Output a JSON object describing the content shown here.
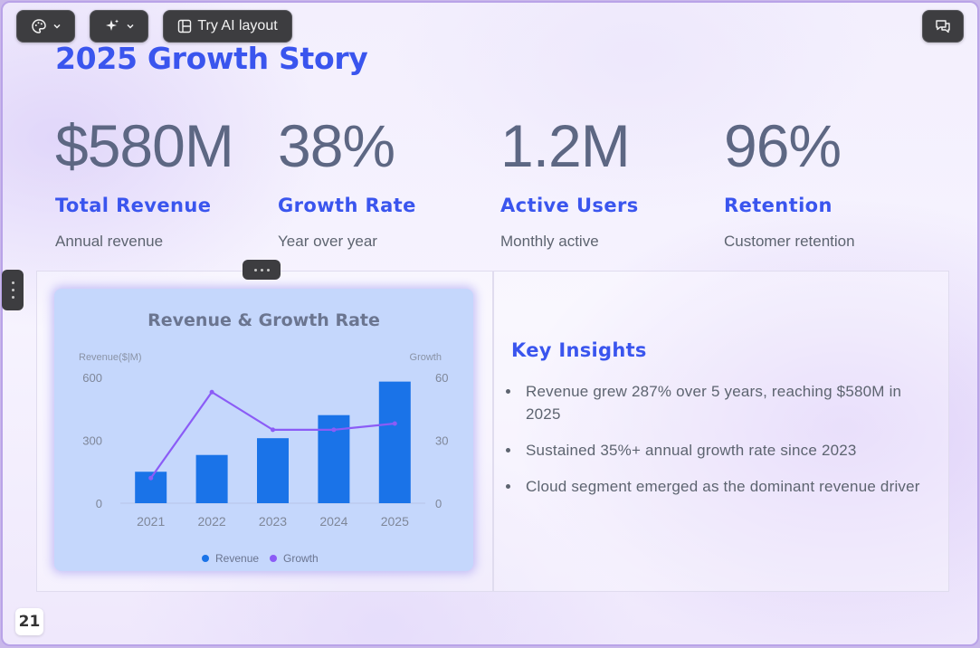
{
  "toolbar": {
    "theme_icon": "palette-icon",
    "ai_icon": "sparkle-icon",
    "layout_icon": "layout-icon",
    "ai_layout_label": "Try AI layout",
    "comment_icon": "chat-icon"
  },
  "slide": {
    "title": "2025 Growth Story",
    "page_number": "21"
  },
  "stats": [
    {
      "value": "$580M",
      "label": "Total Revenue",
      "sub": "Annual revenue"
    },
    {
      "value": "38%",
      "label": "Growth Rate",
      "sub": "Year over year"
    },
    {
      "value": "1.2M",
      "label": "Active Users",
      "sub": "Monthly active"
    },
    {
      "value": "96%",
      "label": "Retention",
      "sub": "Customer retention"
    }
  ],
  "insights": {
    "title": "Key Insights",
    "items": [
      "Revenue grew 287% over 5 years, reaching $580M in 2025",
      "Sustained 35%+ annual growth rate since 2023",
      "Cloud segment emerged as the dominant revenue driver"
    ]
  },
  "colors": {
    "accent": "#3a55ee",
    "bar": "#1a73e8",
    "line": "#8b5cf6",
    "card": "#c5d7fc"
  },
  "chart_data": {
    "type": "bar",
    "title": "Revenue & Growth Rate",
    "categories": [
      "2021",
      "2022",
      "2023",
      "2024",
      "2025"
    ],
    "series": [
      {
        "name": "Revenue",
        "type": "bar",
        "axis": "left",
        "values": [
          150,
          230,
          310,
          420,
          580
        ]
      },
      {
        "name": "Growth",
        "type": "line",
        "axis": "right",
        "values": [
          12,
          53,
          35,
          35,
          38
        ]
      }
    ],
    "ylabel": "Revenue($|M)",
    "y2label": "Growth",
    "ylim": [
      0,
      600
    ],
    "y2lim": [
      0,
      60
    ],
    "yticks": [
      "0",
      "300",
      "600"
    ],
    "y2ticks": [
      "0",
      "30",
      "60"
    ],
    "legend": "bottom-center",
    "grid": false
  }
}
